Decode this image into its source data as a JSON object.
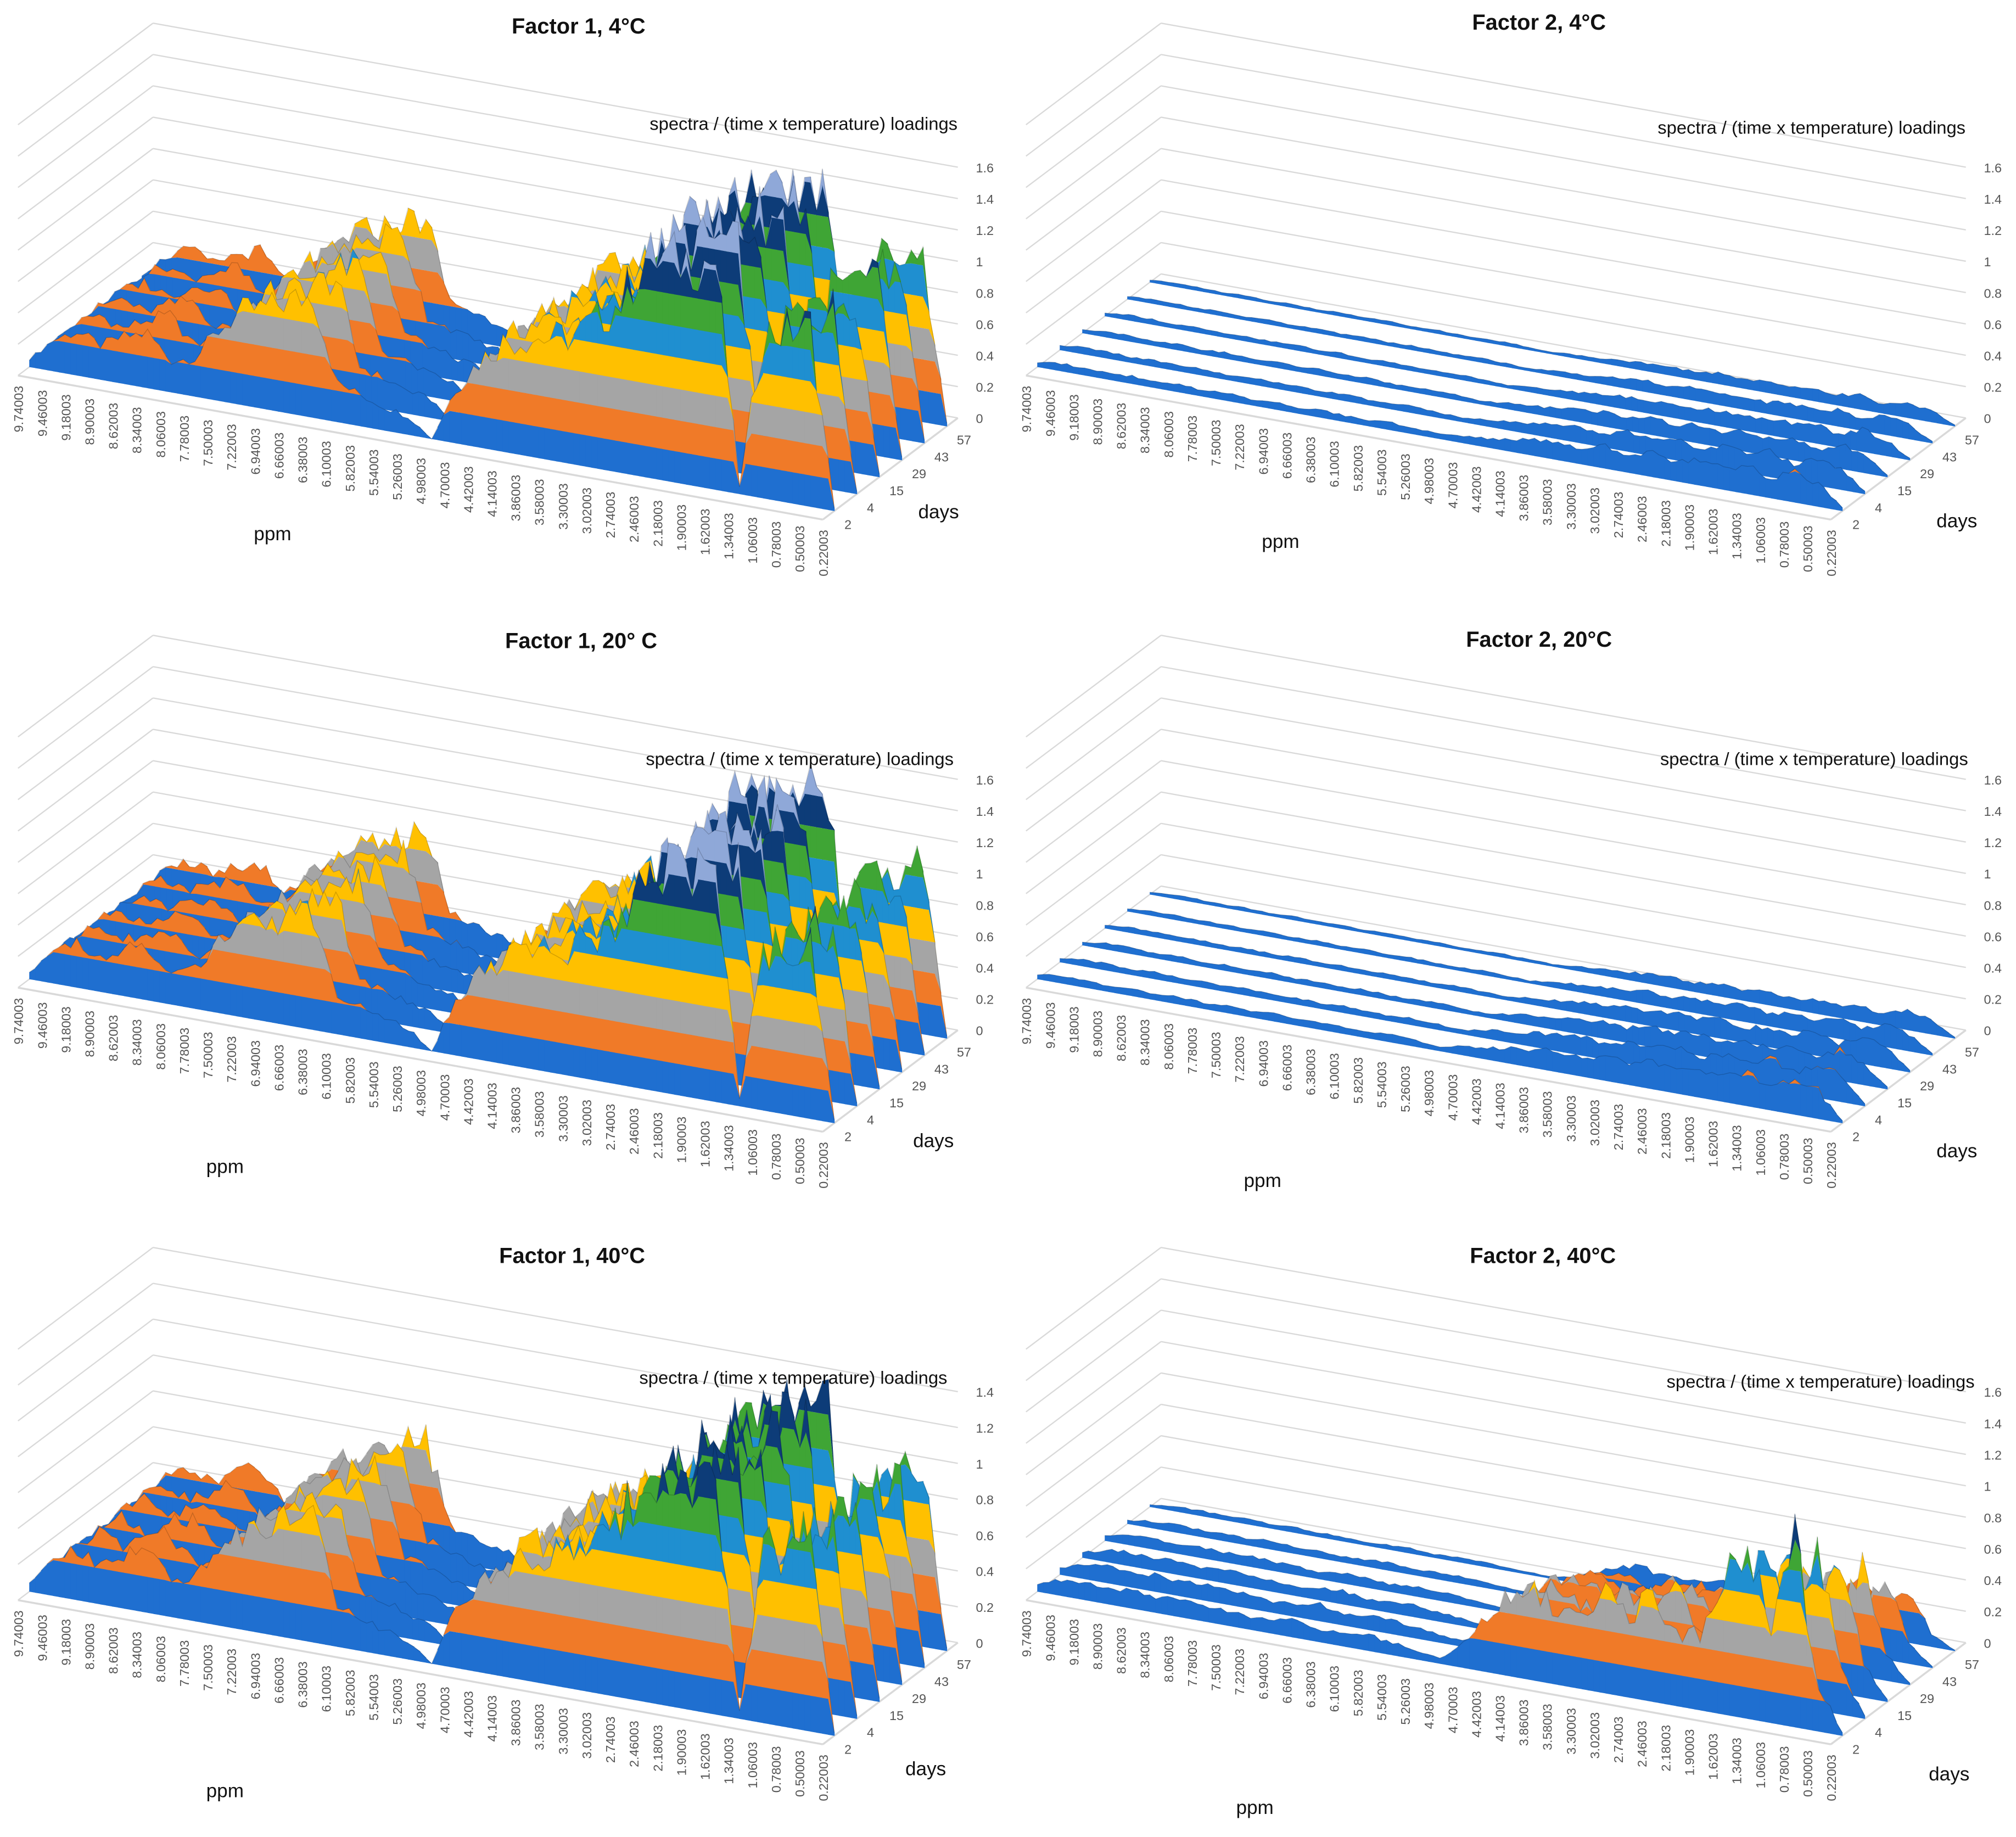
{
  "ppm_ticks": [
    "9.74003",
    "9.46003",
    "9.18003",
    "8.90003",
    "8.62003",
    "8.34003",
    "8.06003",
    "7.78003",
    "7.50003",
    "7.22003",
    "6.94003",
    "6.66003",
    "6.38003",
    "6.10003",
    "5.82003",
    "5.54003",
    "5.26003",
    "4.98003",
    "4.70003",
    "4.42003",
    "4.14003",
    "3.86003",
    "3.58003",
    "3.30003",
    "3.02003",
    "2.74003",
    "2.46003",
    "2.18003",
    "1.90003",
    "1.62003",
    "1.34003",
    "1.06003",
    "0.78003",
    "0.50003",
    "0.22003"
  ],
  "day_ticks": [
    "2",
    "4",
    "15",
    "29",
    "43",
    "57"
  ],
  "band_colors": [
    "#1f6fd0",
    "#f07a28",
    "#a5a5a5",
    "#ffc000",
    "#1f8fd0",
    "#3fa535",
    "#0d3c78",
    "#8fa8d8"
  ],
  "chart_data": [
    {
      "type": "surface",
      "title": "Factor 1, 4°C",
      "zlabel": "spectra / (time x temperature) loadings",
      "xlabel": "ppm",
      "ylabel": "days",
      "z_ticks": [
        "0",
        "0.2",
        "0.4",
        "0.6",
        "0.8",
        "1",
        "1.2",
        "1.4",
        "1.6"
      ],
      "zlim": [
        0,
        1.6
      ],
      "profile": [
        0.05,
        0.2,
        0.28,
        0.22,
        0.3,
        0.35,
        0.2,
        0.25,
        0.45,
        0.6,
        0.65,
        0.72,
        0.78,
        0.25,
        0.2,
        0.15,
        0.12,
        0.0,
        0.35,
        0.55,
        0.7,
        0.75,
        0.78,
        0.82,
        0.95,
        1.1,
        1.4,
        1.42,
        1.45,
        1.45,
        0.05,
        1.05,
        1.1,
        1.15,
        0.02
      ],
      "day_scale": [
        1,
        1,
        0.98,
        0.97,
        0.96,
        0.95
      ]
    },
    {
      "type": "surface",
      "title": "Factor 2, 4°C",
      "zlabel": "spectra / (time x temperature) loadings",
      "xlabel": "ppm",
      "ylabel": "days",
      "z_ticks": [
        "0",
        "0.2",
        "0.4",
        "0.6",
        "0.8",
        "1",
        "1.2",
        "1.4",
        "1.6"
      ],
      "zlim": [
        0,
        1.6
      ],
      "profile": [
        0.03,
        0.05,
        0.05,
        0.04,
        0.05,
        0.04,
        0.05,
        0.04,
        0.05,
        0.04,
        0.05,
        0.04,
        0.05,
        0.04,
        0.04,
        0.05,
        0.04,
        0.03,
        0.05,
        0.06,
        0.08,
        0.1,
        0.12,
        0.1,
        0.14,
        0.12,
        0.15,
        0.12,
        0.16,
        0.14,
        0.18,
        0.12,
        0.2,
        0.15,
        0.02
      ],
      "day_scale": [
        1,
        0.9,
        0.8,
        0.7,
        0.6,
        0.5
      ]
    },
    {
      "type": "surface",
      "title": "Factor 1, 20° C",
      "zlabel": "spectra / (time x temperature) loadings",
      "xlabel": "ppm",
      "ylabel": "days",
      "z_ticks": [
        "0",
        "0.2",
        "0.4",
        "0.6",
        "0.8",
        "1",
        "1.2",
        "1.4",
        "1.6"
      ],
      "zlim": [
        0,
        1.6
      ],
      "profile": [
        0.05,
        0.2,
        0.28,
        0.22,
        0.3,
        0.35,
        0.2,
        0.25,
        0.45,
        0.58,
        0.62,
        0.7,
        0.76,
        0.25,
        0.2,
        0.15,
        0.12,
        0.0,
        0.35,
        0.55,
        0.68,
        0.74,
        0.78,
        0.82,
        0.95,
        1.1,
        1.45,
        1.48,
        1.5,
        1.5,
        0.05,
        1.02,
        1.08,
        1.12,
        0.02
      ],
      "day_scale": [
        1,
        1,
        0.98,
        0.97,
        0.96,
        0.95
      ]
    },
    {
      "type": "surface",
      "title": "Factor 2, 20°C",
      "zlabel": "spectra / (time x temperature) loadings",
      "xlabel": "ppm",
      "ylabel": "days",
      "z_ticks": [
        "0",
        "0.2",
        "0.4",
        "0.6",
        "0.8",
        "1",
        "1.2",
        "1.4",
        "1.6"
      ],
      "zlim": [
        0,
        1.6
      ],
      "profile": [
        0.03,
        0.05,
        0.05,
        0.04,
        0.05,
        0.04,
        0.05,
        0.04,
        0.05,
        0.04,
        0.05,
        0.04,
        0.05,
        0.04,
        0.04,
        0.05,
        0.04,
        0.03,
        0.06,
        0.08,
        0.1,
        0.12,
        0.14,
        0.12,
        0.16,
        0.14,
        0.18,
        0.14,
        0.18,
        0.16,
        0.22,
        0.15,
        0.24,
        0.18,
        0.02
      ],
      "day_scale": [
        1,
        0.9,
        0.8,
        0.7,
        0.6,
        0.5
      ]
    },
    {
      "type": "surface",
      "title": "Factor 1, 40°C",
      "zlabel": "spectra / (time x temperature) loadings",
      "xlabel": "ppm",
      "ylabel": "days",
      "z_ticks": [
        "0",
        "0.2",
        "0.4",
        "0.6",
        "0.8",
        "1",
        "1.2",
        "1.4"
      ],
      "zlim": [
        0,
        1.4
      ],
      "profile": [
        0.05,
        0.2,
        0.28,
        0.22,
        0.3,
        0.35,
        0.2,
        0.25,
        0.42,
        0.55,
        0.6,
        0.66,
        0.7,
        0.22,
        0.18,
        0.14,
        0.1,
        0.0,
        0.32,
        0.5,
        0.62,
        0.68,
        0.72,
        0.76,
        0.88,
        1.0,
        1.25,
        1.28,
        1.3,
        1.3,
        0.05,
        0.95,
        1.0,
        1.02,
        0.02
      ],
      "day_scale": [
        1,
        1,
        0.98,
        0.97,
        0.96,
        0.95
      ]
    },
    {
      "type": "surface",
      "title": "Factor 2, 40°C",
      "zlabel": "spectra / (time x temperature) loadings",
      "xlabel": "ppm",
      "ylabel": "days",
      "z_ticks": [
        "0",
        "0.2",
        "0.4",
        "0.6",
        "0.8",
        "1",
        "1.2",
        "1.4",
        "1.6"
      ],
      "zlim": [
        0,
        1.6
      ],
      "profile": [
        0.05,
        0.1,
        0.12,
        0.1,
        0.12,
        0.1,
        0.12,
        0.1,
        0.1,
        0.08,
        0.1,
        0.12,
        0.08,
        0.1,
        0.1,
        0.08,
        0.06,
        0.04,
        0.15,
        0.35,
        0.55,
        0.6,
        0.45,
        0.5,
        0.62,
        0.5,
        0.7,
        0.45,
        0.5,
        0.85,
        1.1,
        0.6,
        1.2,
        0.3,
        0.02
      ],
      "day_scale": [
        1,
        0.9,
        0.75,
        0.6,
        0.45,
        0.3
      ]
    }
  ]
}
